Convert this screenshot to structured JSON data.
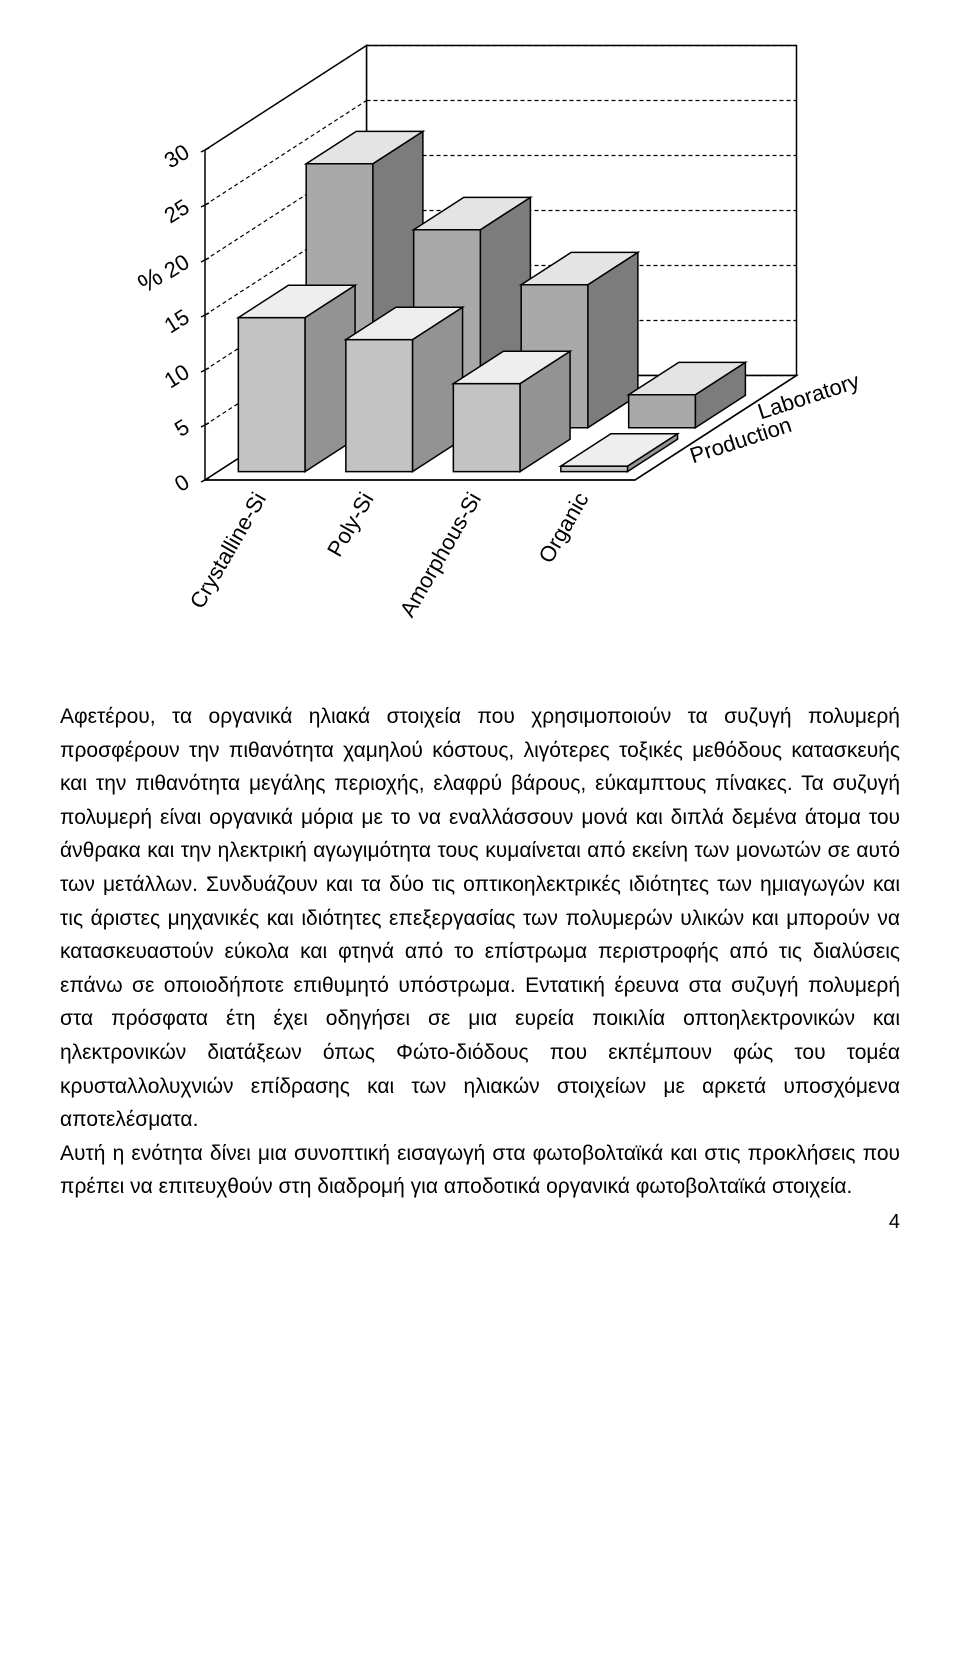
{
  "chart": {
    "type": "3d-bar",
    "y_axis": {
      "label": "%",
      "ticks": [
        0,
        5,
        10,
        15,
        20,
        25,
        30
      ],
      "ymin": 0,
      "ymax": 30
    },
    "x_categories": [
      "Crystalline-Si",
      "Poly-Si",
      "Amorphous-Si",
      "Organic"
    ],
    "z_categories": [
      "Laboratory",
      "Production"
    ],
    "series": {
      "Laboratory": [
        24,
        18,
        13,
        3
      ],
      "Production": [
        14,
        12,
        8,
        0.5
      ]
    },
    "colors": {
      "Laboratory": {
        "top": "#e4e4e4",
        "front": "#a9a9a9",
        "side": "#7c7c7c"
      },
      "Production": {
        "top": "#eeeeee",
        "front": "#c3c3c3",
        "side": "#939393"
      },
      "floor": "#ffffff",
      "back_wall": "#ffffff",
      "side_wall": "#ffffff",
      "grid": "#000000",
      "grid_dash": "4,3",
      "outline": "#000000"
    },
    "label_fontsize": 22,
    "axis_fontsize": 22,
    "axis_label_fontsize": 26
  },
  "paragraphs": [
    "Αφετέρου, τα οργανικά ηλιακά στοιχεία που χρησιμοποιούν τα συζυγή πολυμερή προσφέρουν την πιθανότητα χαμηλού κόστους, λιγότερες τοξικές μεθόδους κατασκευής και την πιθανότητα μεγάλης περιοχής, ελαφρύ βάρους, εύκαμπτους πίνακες. Τα συζυγή πολυμερή είναι οργανικά μόρια με το να εναλλάσσουν μονά και διπλά δεμένα άτομα του άνθρακα και την ηλεκτρική αγωγιμότητα τους κυμαίνεται από εκείνη των μονωτών σε αυτό των μετάλλων. Συνδυάζουν και τα δύο τις οπτικοηλεκτρικές ιδιότητες των ημιαγωγών και τις άριστες μηχανικές και ιδιότητες επεξεργασίας των πολυμερών υλικών και μπορούν να κατασκευαστούν εύκολα και φτηνά από το επίστρωμα περιστροφής από τις διαλύσεις επάνω σε οποιοδήποτε επιθυμητό υπόστρωμα. Εντατική έρευνα στα συζυγή πολυμερή στα πρόσφατα έτη έχει οδηγήσει σε μια ευρεία ποικιλία οπτοηλεκτρονικών και ηλεκτρονικών διατάξεων όπως Φώτο-διόδους που εκπέμπουν φώς του τομέα κρυσταλλολυχνιών επίδρασης και των ηλιακών στοιχείων με αρκετά υποσχόμενα αποτελέσματα.",
    "Αυτή η ενότητα δίνει μια συνοπτική εισαγωγή στα φωτοβολταϊκά και στις προκλήσεις που πρέπει να επιτευχθούν στη διαδρομή για αποδοτικά οργανικά φωτοβολταϊκά στοιχεία."
  ],
  "page_number": "4"
}
